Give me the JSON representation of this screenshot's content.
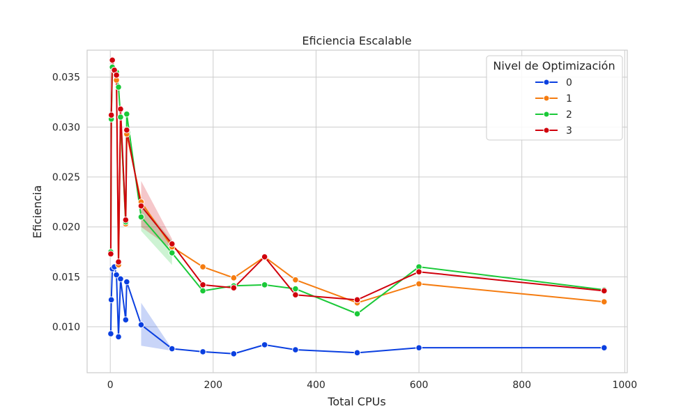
{
  "chart_data": {
    "type": "line",
    "title": "Eficiencia Escalable",
    "xlabel": "Total CPUs",
    "ylabel": "Eficiencia",
    "xlim": [
      -45,
      1005
    ],
    "ylim": [
      0.0054,
      0.0377
    ],
    "xticks": [
      0,
      200,
      400,
      600,
      800,
      1000
    ],
    "xtick_labels": [
      "0",
      "200",
      "400",
      "600",
      "800",
      "1000"
    ],
    "yticks": [
      0.01,
      0.015,
      0.02,
      0.025,
      0.03,
      0.035
    ],
    "ytick_labels": [
      "0.010",
      "0.015",
      "0.020",
      "0.025",
      "0.030",
      "0.035"
    ],
    "grid": true,
    "legend": {
      "title": "Nivel de Optimización",
      "placement": "top-right"
    },
    "series": [
      {
        "name": "0",
        "color": "#0a3fe0",
        "x": [
          1,
          2,
          4,
          8,
          12,
          16,
          20,
          30,
          32,
          60,
          120,
          180,
          240,
          300,
          360,
          480,
          600,
          960
        ],
        "y": [
          0.0093,
          0.0127,
          0.0158,
          0.016,
          0.0152,
          0.009,
          0.0148,
          0.0107,
          0.0145,
          0.0102,
          0.0078,
          0.0075,
          0.0073,
          0.0082,
          0.0077,
          0.0074,
          0.0079,
          0.0079
        ],
        "band": {
          "x": [
            60,
            120
          ],
          "lower": [
            0.0081,
            0.0076
          ],
          "upper": [
            0.0124,
            0.0078
          ]
        }
      },
      {
        "name": "1",
        "color": "#f57c10",
        "x": [
          1,
          2,
          4,
          8,
          12,
          16,
          20,
          30,
          32,
          60,
          120,
          180,
          240,
          300,
          360,
          480,
          600,
          960
        ],
        "y": [
          0.0173,
          0.031,
          0.036,
          0.0357,
          0.0347,
          0.0162,
          0.031,
          0.0203,
          0.0293,
          0.0225,
          0.018,
          0.016,
          0.0149,
          0.017,
          0.0147,
          0.0124,
          0.0143,
          0.0125
        ]
      },
      {
        "name": "2",
        "color": "#1ac938",
        "x": [
          1,
          2,
          4,
          8,
          12,
          16,
          20,
          30,
          32,
          60,
          120,
          180,
          240,
          300,
          360,
          480,
          600,
          960
        ],
        "y": [
          0.0175,
          0.0308,
          0.036,
          0.0357,
          0.0355,
          0.034,
          0.031,
          0.0205,
          0.0313,
          0.021,
          0.0174,
          0.0136,
          0.0141,
          0.0142,
          0.0138,
          0.0113,
          0.016,
          0.0137
        ],
        "band": {
          "x": [
            60,
            120
          ],
          "lower": [
            0.0196,
            0.0162
          ],
          "upper": [
            0.0224,
            0.0186
          ]
        }
      },
      {
        "name": "3",
        "color": "#d0000c",
        "x": [
          1,
          2,
          4,
          8,
          12,
          16,
          20,
          30,
          32,
          60,
          120,
          180,
          240,
          300,
          360,
          480,
          600,
          960
        ],
        "y": [
          0.0173,
          0.0312,
          0.0367,
          0.0357,
          0.0352,
          0.0165,
          0.0318,
          0.0207,
          0.0297,
          0.0221,
          0.0183,
          0.0142,
          0.0139,
          0.017,
          0.0132,
          0.0127,
          0.0155,
          0.0136
        ],
        "band": {
          "x": [
            60,
            120
          ],
          "lower": [
            0.02,
            0.0178
          ],
          "upper": [
            0.0246,
            0.0188
          ]
        }
      }
    ]
  }
}
